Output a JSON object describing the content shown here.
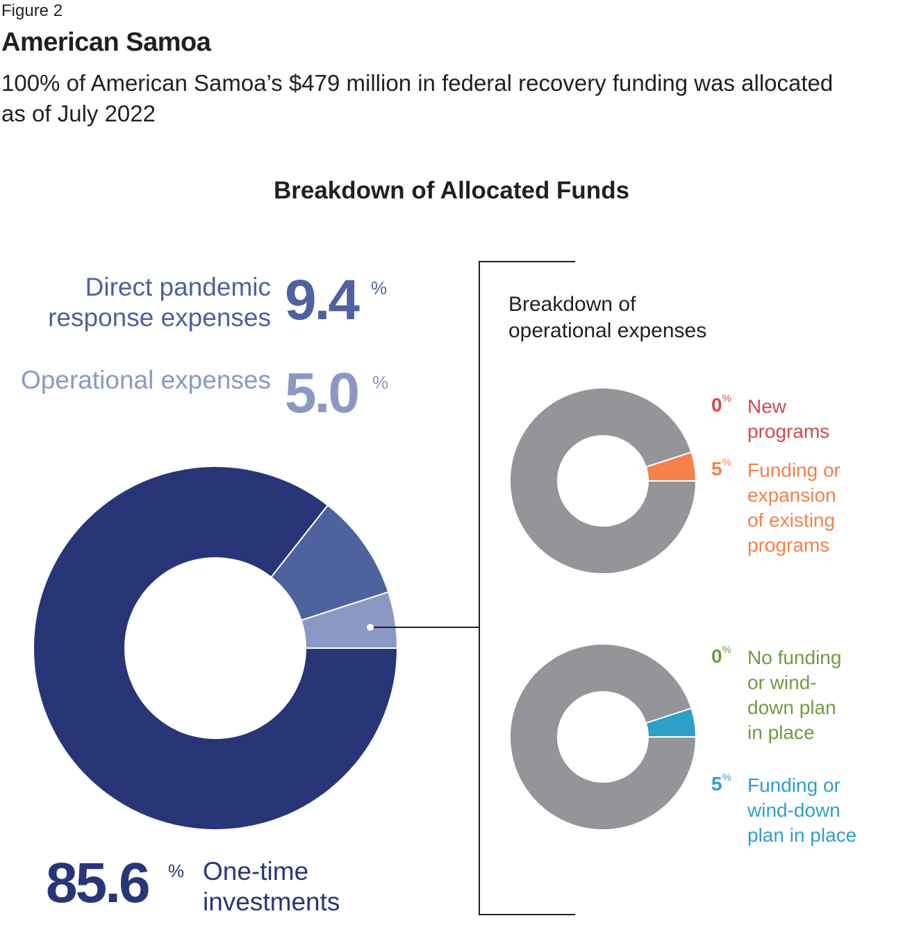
{
  "figure_label": "Figure 2",
  "title": "American Samoa",
  "subtitle": "100% of American Samoa’s $479 million in federal recovery funding was allocated as of July 2022",
  "colors": {
    "one_time": "#283677",
    "direct": "#4d629e",
    "operational": "#8b98c4",
    "gray": "#939598",
    "new_programs": "#d64a4b",
    "existing_programs": "#f4814a",
    "no_winddown": "#6f9b45",
    "winddown": "#2e9fc9"
  },
  "chart_data": [
    {
      "type": "pie",
      "title": "Breakdown of Allocated Funds",
      "slices": [
        {
          "label": "One-time investments",
          "value": 85.6
        },
        {
          "label": "Direct pandemic response expenses",
          "value": 9.4
        },
        {
          "label": "Operational expenses",
          "value": 5.0
        }
      ],
      "display": {
        "one_time": {
          "label": "One-time investments",
          "value": "85.6",
          "unit": "%"
        },
        "direct": {
          "label": "Direct pandemic response expenses",
          "value": "9.4",
          "unit": "%"
        },
        "operational": {
          "label": "Operational expenses",
          "value": "5.0",
          "unit": "%"
        }
      }
    },
    {
      "type": "pie",
      "title": "Breakdown of operational expenses",
      "slices": [
        {
          "label": "New programs",
          "value": 0,
          "display": "0",
          "unit": "%"
        },
        {
          "label": "Funding or expansion of existing programs",
          "value": 5,
          "display": "5",
          "unit": "%"
        }
      ]
    },
    {
      "type": "pie",
      "slices": [
        {
          "label": "No funding or wind-down plan in place",
          "value": 0,
          "display": "0",
          "unit": "%"
        },
        {
          "label": "Funding or wind-down plan in place",
          "value": 5,
          "display": "5",
          "unit": "%"
        }
      ]
    }
  ]
}
